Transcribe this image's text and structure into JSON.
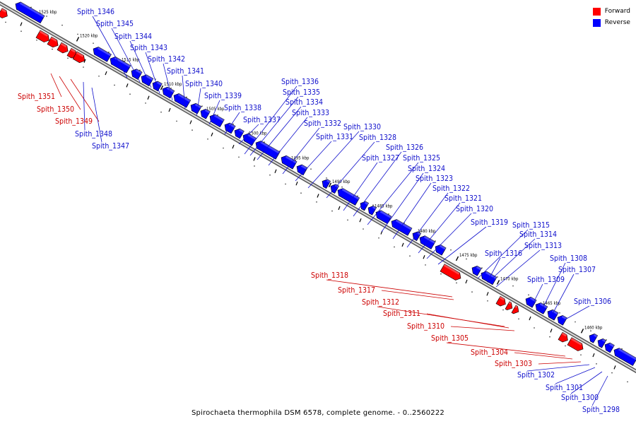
{
  "title": "Spirochaeta thermophila DSM 6578, complete genome. - 0..2560222",
  "legend": [
    {
      "label": "Forward",
      "color": "#ff0000"
    },
    {
      "label": "Reverse",
      "color": "#0000ff"
    }
  ],
  "colors": {
    "forward": "#ff0000",
    "reverse": "#0000ff",
    "label_forward": "#cc0000",
    "label_reverse": "#1010cc"
  },
  "ticks": [
    "1525 kbp",
    "1520 kbp",
    "1515 kbp",
    "1510 kbp",
    "1505 kbp",
    "1500 kbp",
    "1495 kbp",
    "1490 kbp",
    "1485 kbp",
    "1480 kbp",
    "1475 kbp",
    "1470 kbp",
    "1465 kbp",
    "1460 kbp"
  ],
  "genes": [
    {
      "label": "Spith_1351",
      "strand": "forward"
    },
    {
      "label": "Spith_1350",
      "strand": "forward"
    },
    {
      "label": "Spith_1349",
      "strand": "forward"
    },
    {
      "label": "Spith_1348",
      "strand": "reverse"
    },
    {
      "label": "Spith_1347",
      "strand": "reverse"
    },
    {
      "label": "Spith_1346",
      "strand": "reverse"
    },
    {
      "label": "Spith_1345",
      "strand": "reverse"
    },
    {
      "label": "Spith_1344",
      "strand": "reverse"
    },
    {
      "label": "Spith_1343",
      "strand": "reverse"
    },
    {
      "label": "Spith_1342",
      "strand": "reverse"
    },
    {
      "label": "Spith_1341",
      "strand": "reverse"
    },
    {
      "label": "Spith_1340",
      "strand": "reverse"
    },
    {
      "label": "Spith_1339",
      "strand": "reverse"
    },
    {
      "label": "Spith_1338",
      "strand": "reverse"
    },
    {
      "label": "Spith_1337",
      "strand": "reverse"
    },
    {
      "label": "Spith_1336",
      "strand": "reverse"
    },
    {
      "label": "Spith_1335",
      "strand": "reverse"
    },
    {
      "label": "Spith_1334",
      "strand": "reverse"
    },
    {
      "label": "Spith_1333",
      "strand": "reverse"
    },
    {
      "label": "Spith_1332",
      "strand": "reverse"
    },
    {
      "label": "Spith_1331",
      "strand": "reverse"
    },
    {
      "label": "Spith_1330",
      "strand": "reverse"
    },
    {
      "label": "Spith_1328",
      "strand": "reverse"
    },
    {
      "label": "Spith_1327",
      "strand": "reverse"
    },
    {
      "label": "Spith_1326",
      "strand": "reverse"
    },
    {
      "label": "Spith_1325",
      "strand": "reverse"
    },
    {
      "label": "Spith_1324",
      "strand": "reverse"
    },
    {
      "label": "Spith_1323",
      "strand": "reverse"
    },
    {
      "label": "Spith_1322",
      "strand": "reverse"
    },
    {
      "label": "Spith_1321",
      "strand": "reverse"
    },
    {
      "label": "Spith_1320",
      "strand": "reverse"
    },
    {
      "label": "Spith_1319",
      "strand": "reverse"
    },
    {
      "label": "Spith_1318",
      "strand": "forward"
    },
    {
      "label": "Spith_1317",
      "strand": "forward"
    },
    {
      "label": "Spith_1316",
      "strand": "reverse"
    },
    {
      "label": "Spith_1315",
      "strand": "reverse"
    },
    {
      "label": "Spith_1314",
      "strand": "reverse"
    },
    {
      "label": "Spith_1313",
      "strand": "reverse"
    },
    {
      "label": "Spith_1312",
      "strand": "forward"
    },
    {
      "label": "Spith_1311",
      "strand": "forward"
    },
    {
      "label": "Spith_1310",
      "strand": "forward"
    },
    {
      "label": "Spith_1309",
      "strand": "reverse"
    },
    {
      "label": "Spith_1308",
      "strand": "reverse"
    },
    {
      "label": "Spith_1307",
      "strand": "reverse"
    },
    {
      "label": "Spith_1306",
      "strand": "reverse"
    },
    {
      "label": "Spith_1305",
      "strand": "forward"
    },
    {
      "label": "Spith_1304",
      "strand": "forward"
    },
    {
      "label": "Spith_1303",
      "strand": "forward"
    },
    {
      "label": "Spith_1302",
      "strand": "reverse"
    },
    {
      "label": "Spith_1301",
      "strand": "reverse"
    },
    {
      "label": "Spith_1300",
      "strand": "reverse"
    },
    {
      "label": "Spith_1298",
      "strand": "reverse"
    }
  ]
}
